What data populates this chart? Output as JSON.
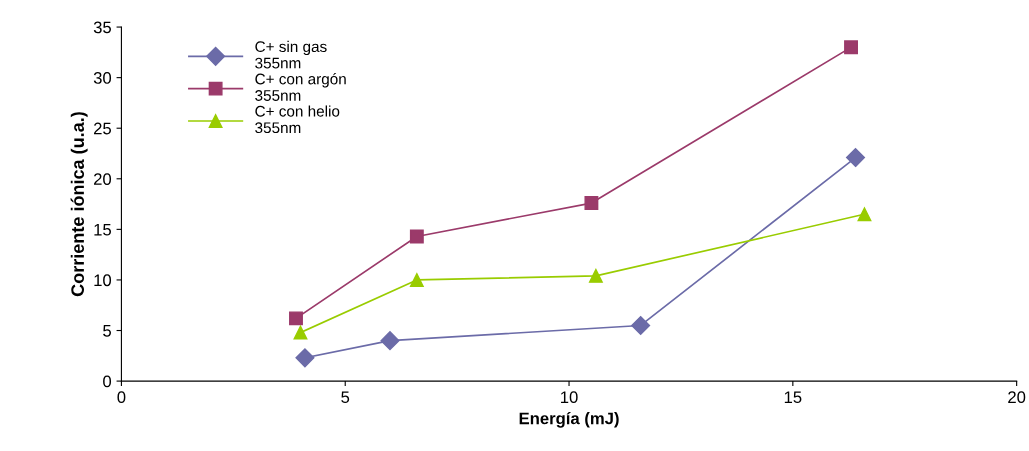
{
  "chart_data": {
    "type": "line",
    "xlabel": "Energía (mJ)",
    "ylabel": "Corriente iónica (u.a.)",
    "xlim": [
      0,
      20
    ],
    "xticks": [
      0,
      5,
      10,
      15,
      20
    ],
    "ylim": [
      0,
      35
    ],
    "yticks": [
      0,
      5,
      10,
      15,
      20,
      25,
      30,
      35
    ],
    "grid": false,
    "legend": "top left",
    "series": [
      {
        "name": "C+ sin gas\n355nm",
        "color": "#6b6ba8",
        "marker": "diamond",
        "x": [
          4.1,
          6.0,
          11.6,
          16.4
        ],
        "values": [
          2.3,
          4.0,
          5.5,
          22.1
        ]
      },
      {
        "name": "C+ con argón\n355nm",
        "color": "#9b3a6a",
        "marker": "square",
        "x": [
          3.9,
          6.6,
          10.5,
          16.3
        ],
        "values": [
          6.2,
          14.3,
          17.6,
          33.0
        ]
      },
      {
        "name": "C+ con helio\n355nm",
        "color": "#99cc00",
        "marker": "triangle",
        "x": [
          4.0,
          6.6,
          10.6,
          16.6
        ],
        "values": [
          4.8,
          10.0,
          10.4,
          16.5
        ]
      }
    ]
  }
}
